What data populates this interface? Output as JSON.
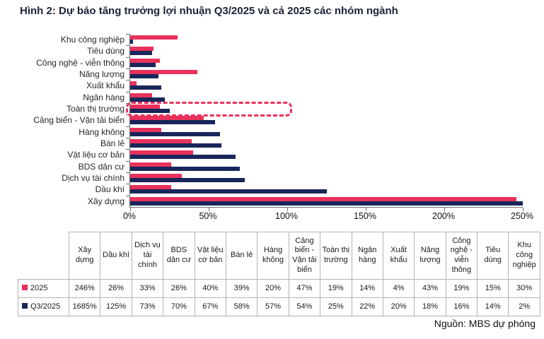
{
  "title": "Hình 2: Dự báo tăng trưởng lợi nhuận Q3/2025 và cả 2025 các nhóm ngành",
  "source": "Nguồn: MBS dự phóng",
  "colors": {
    "red": "#e8315b",
    "navy": "#18265a",
    "axis": "#6f6f6f",
    "highlight": "#e8315b"
  },
  "chart_data": {
    "type": "bar",
    "orientation": "horizontal",
    "title": "Hình 2: Dự báo tăng trưởng lợi nhuận Q3/2025 và cả 2025 các nhóm ngành",
    "categories": [
      "Khu công nghiệp",
      "Tiêu dùng",
      "Công nghệ - viễn thông",
      "Năng lượng",
      "Xuất khẩu",
      "Ngân hàng",
      "Toàn thị trường",
      "Cảng biển - Vận tải biển",
      "Hàng không",
      "Bán lẻ",
      "Vật liệu cơ bản",
      "BDS dân cư",
      "Dịch vụ tài chính",
      "Dầu khí",
      "Xây dựng"
    ],
    "series": [
      {
        "name": "2025",
        "color": "#e8315b",
        "values": [
          30,
          15,
          19,
          43,
          4,
          14,
          19,
          47,
          20,
          39,
          40,
          26,
          33,
          26,
          246
        ]
      },
      {
        "name": "Q3/2025",
        "color": "#18265a",
        "values": [
          2,
          14,
          16,
          18,
          20,
          22,
          25,
          54,
          57,
          58,
          67,
          70,
          73,
          125,
          1685
        ]
      }
    ],
    "xlim": [
      0,
      250
    ],
    "x_tick_labels": [
      "0%",
      "50%",
      "100%",
      "150%",
      "200%",
      "250%"
    ],
    "value_unit": "%",
    "bar_cap_pct": 250,
    "grid": false,
    "highlight": {
      "category": "Toàn thị trường",
      "style": "red-dashed-box",
      "extent_pct": 103
    }
  },
  "table": {
    "columns": [
      "Xây dựng",
      "Dầu khí",
      "Dịch vụ tài chính",
      "BDS dân cư",
      "Vật liệu cơ bản",
      "Bán lẻ",
      "Hàng không",
      "Cảng biển - Vận tải biển",
      "Toàn thị trường",
      "Ngân hàng",
      "Xuất khẩu",
      "Năng lượng",
      "Công nghệ - viễn thông",
      "Tiêu dùng",
      "Khu công nghiệp"
    ],
    "rows": [
      {
        "label": "2025",
        "swatch": "#e8315b",
        "values": [
          "246%",
          "26%",
          "33%",
          "26%",
          "40%",
          "39%",
          "20%",
          "47%",
          "19%",
          "14%",
          "4%",
          "43%",
          "19%",
          "15%",
          "30%"
        ]
      },
      {
        "label": "Q3/2025",
        "swatch": "#18265a",
        "values": [
          "1685%",
          "125%",
          "73%",
          "70%",
          "67%",
          "58%",
          "57%",
          "54%",
          "25%",
          "22%",
          "20%",
          "18%",
          "16%",
          "14%",
          "2%"
        ]
      }
    ]
  }
}
